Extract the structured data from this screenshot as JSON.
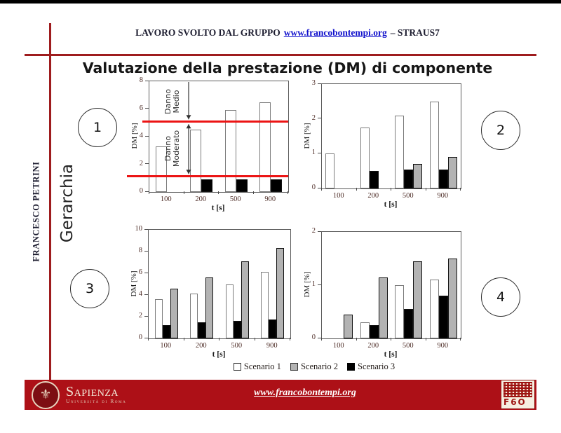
{
  "header": {
    "prefix": "LAVORO SVOLTO DAL GRUPPO",
    "link": "www.francobontempi.org",
    "suffix": "– STRAUS7"
  },
  "title": "Valutazione della prestazione (DM) di componente",
  "sidebar": {
    "author": "FRANCESCO PETRINI",
    "label": "Gerarchia"
  },
  "badges": [
    "1",
    "2",
    "3",
    "4"
  ],
  "legend": [
    {
      "label": "Scenario 1",
      "color": "#ffffff"
    },
    {
      "label": "Scenario 2",
      "color": "#b3b3b3"
    },
    {
      "label": "Scenario 3",
      "color": "#000000"
    }
  ],
  "footer": {
    "brand": "Sapienza",
    "brand_sub": "Università di Roma",
    "link": "www.francobontempi.org",
    "fbo_text": "F6O"
  },
  "colors": {
    "rule_red": "#9e1c1e",
    "footer_red": "#ad1017",
    "threshold_red": "#ec1414",
    "link_blue": "#1111cc",
    "bar_gray": "#b3b3b3",
    "ink": "#1d1d30"
  },
  "chart_data": [
    {
      "id": 1,
      "type": "bar",
      "position": "top-left",
      "categories": [
        "100",
        "200",
        "500",
        "900"
      ],
      "xlabel": "t [s]",
      "ylabel": "DM [%]",
      "ylim": [
        0,
        8
      ],
      "yticks": [
        0,
        2,
        4,
        6,
        8
      ],
      "grid": false,
      "series": [
        {
          "name": "Scenario 1",
          "color": "#ffffff",
          "values": [
            3.3,
            4.5,
            5.9,
            6.5
          ]
        },
        {
          "name": "Scenario 3",
          "color": "#000000",
          "values": [
            0,
            0.9,
            0.9,
            0.9
          ]
        }
      ],
      "thresholds": [
        {
          "value": 5.1,
          "label": "Danno Medio"
        },
        {
          "value": 1.15,
          "label": "Danno Moderato"
        }
      ]
    },
    {
      "id": 2,
      "type": "bar",
      "position": "top-right",
      "categories": [
        "100",
        "200",
        "500",
        "900"
      ],
      "xlabel": "t [s]",
      "ylabel": "DM [%]",
      "ylim": [
        0,
        3
      ],
      "yticks": [
        0,
        1,
        2,
        3
      ],
      "grid": false,
      "series": [
        {
          "name": "Scenario 1",
          "color": "#ffffff",
          "values": [
            1.0,
            1.75,
            2.1,
            2.5
          ]
        },
        {
          "name": "Scenario 3",
          "color": "#000000",
          "values": [
            0,
            0.5,
            0.55,
            0.55
          ]
        },
        {
          "name": "Scenario 2",
          "color": "#b3b3b3",
          "values": [
            0,
            0,
            0.7,
            0.9
          ]
        }
      ]
    },
    {
      "id": 3,
      "type": "bar",
      "position": "bottom-left",
      "categories": [
        "100",
        "200",
        "500",
        "900"
      ],
      "xlabel": "t [s]",
      "ylabel": "DM [%]",
      "ylim": [
        0,
        10
      ],
      "yticks": [
        0,
        2,
        4,
        6,
        8,
        10
      ],
      "grid": false,
      "series": [
        {
          "name": "Scenario 1",
          "color": "#ffffff",
          "values": [
            3.6,
            4.1,
            5.0,
            6.1
          ]
        },
        {
          "name": "Scenario 3",
          "color": "#000000",
          "values": [
            1.2,
            1.5,
            1.6,
            1.75
          ]
        },
        {
          "name": "Scenario 2",
          "color": "#b3b3b3",
          "values": [
            4.6,
            5.6,
            7.1,
            8.3
          ]
        }
      ]
    },
    {
      "id": 4,
      "type": "bar",
      "position": "bottom-right",
      "categories": [
        "100",
        "200",
        "500",
        "900"
      ],
      "xlabel": "t [s]",
      "ylabel": "DM [%]",
      "ylim": [
        0,
        2
      ],
      "yticks": [
        0,
        1,
        2
      ],
      "grid": false,
      "series": [
        {
          "name": "Scenario 1",
          "color": "#ffffff",
          "values": [
            0,
            0.3,
            1.0,
            1.1
          ]
        },
        {
          "name": "Scenario 3",
          "color": "#000000",
          "values": [
            0,
            0.25,
            0.55,
            0.8
          ]
        },
        {
          "name": "Scenario 2",
          "color": "#b3b3b3",
          "values": [
            0.45,
            1.15,
            1.45,
            1.5
          ]
        }
      ]
    }
  ]
}
